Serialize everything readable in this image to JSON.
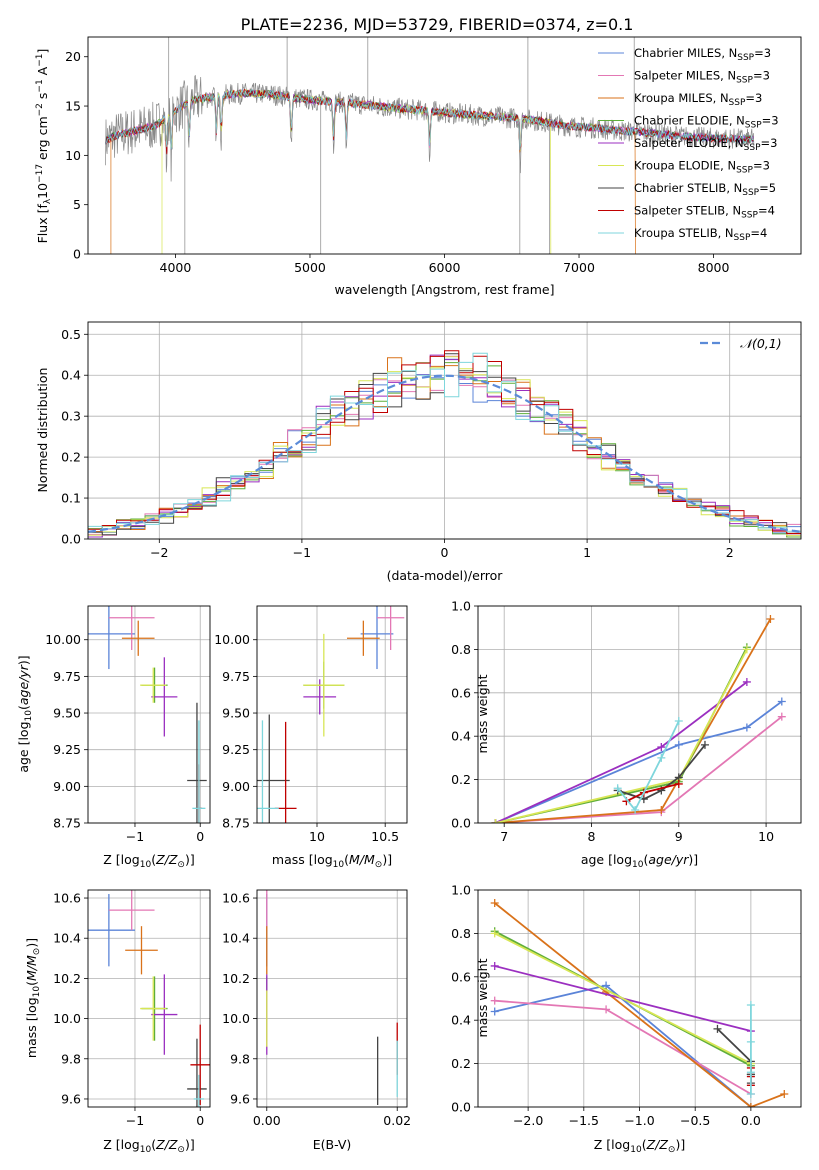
{
  "figure_title": "PLATE=2236, MJD=53729, FIBERID=0374, z=0.1",
  "colors": {
    "Chabrier MILES": "#5b84d8",
    "Salpeter MILES": "#e377b4",
    "Kroupa MILES": "#d9721a",
    "Chabrier ELODIE": "#5fae3a",
    "Salpeter ELODIE": "#9b2fc0",
    "Kroupa ELODIE": "#d8e655",
    "Chabrier STELIB": "#444444",
    "Salpeter STELIB": "#c00000",
    "Kroupa STELIB": "#7fd6dc",
    "normal_curve": "#5b8bd8",
    "grid": "#b0b0b0"
  },
  "chart_data": [
    {
      "id": "spectrum",
      "type": "line",
      "xlabel": "wavelength [Angstrom, rest frame]",
      "ylabel": "Flux [f$_\\lambda$10$^{-17}$ erg cm$^{-2}$ s$^{-1}$ A$^{-1}$]",
      "ylabel_parts": [
        "Flux [f",
        "λ",
        "10",
        "−17",
        " erg cm",
        "−2",
        " s",
        "−1",
        " A",
        "−1",
        "]"
      ],
      "xlim": [
        3350,
        8650
      ],
      "ylim": [
        0,
        22
      ],
      "xticks": [
        4000,
        5000,
        6000,
        7000,
        8000
      ],
      "yticks": [
        0,
        5,
        10,
        15,
        20
      ],
      "legend": [
        {
          "label": "Chabrier MILES, N",
          "sub": "SSP",
          "suffix": "=3"
        },
        {
          "label": "Salpeter MILES, N",
          "sub": "SSP",
          "suffix": "=3"
        },
        {
          "label": "Kroupa MILES, N",
          "sub": "SSP",
          "suffix": "=3"
        },
        {
          "label": "Chabrier ELODIE, N",
          "sub": "SSP",
          "suffix": "=3"
        },
        {
          "label": "Salpeter ELODIE, N",
          "sub": "SSP",
          "suffix": "=3"
        },
        {
          "label": "Kroupa ELODIE, N",
          "sub": "SSP",
          "suffix": "=3"
        },
        {
          "label": "Chabrier STELIB, N",
          "sub": "SSP",
          "suffix": "=5"
        },
        {
          "label": "Salpeter STELIB, N",
          "sub": "SSP",
          "suffix": "=4"
        },
        {
          "label": "Kroupa STELIB, N",
          "sub": "SSP",
          "suffix": "=4"
        }
      ],
      "legend_placement": "upper-right",
      "grid": false,
      "continuum": {
        "x": [
          3480,
          3550,
          3700,
          3850,
          3950,
          4100,
          4300,
          4500,
          4700,
          4900,
          5100,
          5300,
          5500,
          5700,
          5900,
          6100,
          6300,
          6500,
          6700,
          6900,
          7100,
          7300,
          7500,
          7700,
          7900,
          8100,
          8300
        ],
        "y": [
          11.5,
          12.0,
          12.5,
          13.0,
          14.0,
          15.5,
          16.0,
          16.3,
          16.2,
          15.8,
          15.5,
          15.3,
          15.0,
          14.7,
          14.5,
          14.2,
          14.0,
          13.8,
          13.5,
          13.0,
          12.8,
          12.5,
          12.3,
          12.0,
          11.8,
          11.7,
          11.6
        ]
      },
      "absorption_features": [
        3934,
        3969,
        4102,
        4304,
        4340,
        4861,
        5175,
        5270,
        5890,
        6563
      ],
      "spikes": [
        3950,
        4070,
        4830,
        5080,
        5430,
        6560,
        6620,
        6780,
        7410
      ]
    },
    {
      "id": "residuals",
      "type": "histogram",
      "xlabel": "(data-model)/error",
      "ylabel": "Normed distribution",
      "xlim": [
        -2.5,
        2.5
      ],
      "ylim": [
        0,
        0.53
      ],
      "xticks": [
        -2,
        -1,
        0,
        1,
        2
      ],
      "yticks": [
        0.0,
        0.1,
        0.2,
        0.3,
        0.4,
        0.5
      ],
      "grid": true,
      "bin_width": 0.1,
      "legend": [
        {
          "label": "𝒩(0,1)"
        }
      ],
      "legend_placement": "upper-right",
      "curve": "N(0,1)"
    },
    {
      "id": "age_vs_Z",
      "type": "scatter",
      "xlabel": "Z [log$_{10}$(Z/Z$_\\odot$)]",
      "ylabel": "age  [log$_{10}$(age/yr)]",
      "xlim": [
        -1.72,
        0.15
      ],
      "ylim": [
        8.75,
        10.23
      ],
      "xticks": [
        -1,
        0
      ],
      "yticks": [
        8.75,
        9.0,
        9.25,
        9.5,
        9.75,
        10.0
      ],
      "grid": true,
      "points": [
        {
          "series": "Chabrier MILES",
          "x": -1.4,
          "xerr": 0.4,
          "y": 10.04,
          "yerr": 0.24
        },
        {
          "series": "Salpeter MILES",
          "x": -1.05,
          "xerr": 0.35,
          "y": 10.15,
          "yerr": 0.22
        },
        {
          "series": "Kroupa MILES",
          "x": -0.95,
          "xerr": 0.25,
          "y": 10.01,
          "yerr": 0.12
        },
        {
          "series": "Chabrier ELODIE",
          "x": -0.7,
          "xerr": 0.2,
          "y": 9.69,
          "yerr": 0.12
        },
        {
          "series": "Salpeter ELODIE",
          "x": -0.55,
          "xerr": 0.2,
          "y": 9.61,
          "yerr": 0.27
        },
        {
          "series": "Kroupa ELODIE",
          "x": -0.72,
          "xerr": 0.2,
          "y": 9.69,
          "yerr": 0.12
        },
        {
          "series": "Chabrier STELIB",
          "x": -0.05,
          "xerr": 0.15,
          "y": 9.04,
          "yerr": 0.53
        },
        {
          "series": "Salpeter STELIB",
          "x": -0.02,
          "xerr": 0.05,
          "y": 8.85,
          "yerr": 0.3
        },
        {
          "series": "Kroupa STELIB",
          "x": -0.02,
          "xerr": 0.1,
          "y": 8.85,
          "yerr": 0.6
        }
      ]
    },
    {
      "id": "age_vs_mass",
      "type": "scatter",
      "xlabel": "mass [log$_{10}$(M/M$_\\odot$)]",
      "ylabel": "",
      "xlim": [
        9.56,
        10.66
      ],
      "ylim": [
        8.75,
        10.23
      ],
      "xticks": [
        10.0,
        10.5
      ],
      "yticks": [
        8.75,
        9.0,
        9.25,
        9.5,
        9.75,
        10.0
      ],
      "grid": true,
      "points": [
        {
          "series": "Chabrier MILES",
          "x": 10.44,
          "xerr": 0.12,
          "y": 10.04,
          "yerr": 0.24
        },
        {
          "series": "Salpeter MILES",
          "x": 10.54,
          "xerr": 0.1,
          "y": 10.15,
          "yerr": 0.22
        },
        {
          "series": "Kroupa MILES",
          "x": 10.34,
          "xerr": 0.12,
          "y": 10.01,
          "yerr": 0.12
        },
        {
          "series": "Chabrier ELODIE",
          "x": 10.05,
          "xerr": 0.15,
          "y": 9.69,
          "yerr": 0.16
        },
        {
          "series": "Salpeter ELODIE",
          "x": 10.02,
          "xerr": 0.12,
          "y": 9.61,
          "yerr": 0.12
        },
        {
          "series": "Kroupa ELODIE",
          "x": 10.05,
          "xerr": 0.15,
          "y": 9.69,
          "yerr": 0.35
        },
        {
          "series": "Chabrier STELIB",
          "x": 9.65,
          "xerr": 0.15,
          "y": 9.04,
          "yerr": 0.45
        },
        {
          "series": "Salpeter STELIB",
          "x": 9.77,
          "xerr": 0.08,
          "y": 8.85,
          "yerr": 0.59
        },
        {
          "series": "Kroupa STELIB",
          "x": 9.6,
          "xerr": 0.12,
          "y": 8.85,
          "yerr": 0.6
        }
      ]
    },
    {
      "id": "mass_weight_vs_age",
      "type": "line",
      "xlabel": "age  [log$_{10}$(age/yr)]",
      "ylabel": "mass weight",
      "xlim": [
        6.7,
        10.4
      ],
      "ylim": [
        0.0,
        1.0
      ],
      "xticks": [
        7,
        8,
        9,
        10
      ],
      "yticks": [
        0.0,
        0.2,
        0.4,
        0.6,
        0.8,
        1.0
      ],
      "grid": true,
      "series": [
        {
          "name": "Chabrier MILES",
          "x": [
            6.9,
            9.0,
            9.78,
            10.18
          ],
          "y": [
            0.0,
            0.36,
            0.44,
            0.56
          ]
        },
        {
          "name": "Salpeter MILES",
          "x": [
            6.9,
            8.8,
            10.18
          ],
          "y": [
            0.0,
            0.05,
            0.49
          ]
        },
        {
          "name": "Kroupa MILES",
          "x": [
            6.9,
            8.8,
            10.05
          ],
          "y": [
            0.0,
            0.06,
            0.94
          ]
        },
        {
          "name": "Chabrier ELODIE",
          "x": [
            6.9,
            9.0,
            9.78
          ],
          "y": [
            0.0,
            0.19,
            0.81
          ]
        },
        {
          "name": "Salpeter ELODIE",
          "x": [
            6.9,
            8.8,
            9.78
          ],
          "y": [
            0.0,
            0.35,
            0.65
          ]
        },
        {
          "name": "Kroupa ELODIE",
          "x": [
            6.9,
            9.0,
            9.78
          ],
          "y": [
            0.0,
            0.2,
            0.8
          ]
        },
        {
          "name": "Chabrier STELIB",
          "x": [
            8.3,
            8.6,
            8.8,
            9.0,
            9.3
          ],
          "y": [
            0.15,
            0.11,
            0.15,
            0.21,
            0.36
          ]
        },
        {
          "name": "Salpeter STELIB",
          "x": [
            8.4,
            8.6,
            9.0
          ],
          "y": [
            0.1,
            0.14,
            0.18
          ]
        },
        {
          "name": "Kroupa STELIB",
          "x": [
            8.3,
            8.5,
            8.8,
            9.0
          ],
          "y": [
            0.16,
            0.06,
            0.3,
            0.47
          ]
        }
      ]
    },
    {
      "id": "mass_vs_Z",
      "type": "scatter",
      "xlabel": "Z [log$_{10}$(Z/Z$_\\odot$)]",
      "ylabel": "mass [log$_{10}$(M/M$_\\odot$)]",
      "xlim": [
        -1.72,
        0.15
      ],
      "ylim": [
        9.56,
        10.64
      ],
      "xticks": [
        -1,
        0
      ],
      "yticks": [
        9.6,
        9.8,
        10.0,
        10.2,
        10.4,
        10.6
      ],
      "grid": true,
      "points": [
        {
          "series": "Chabrier MILES",
          "x": -1.4,
          "xerr": 0.4,
          "y": 10.44,
          "yerr": 0.18
        },
        {
          "series": "Salpeter MILES",
          "x": -1.05,
          "xerr": 0.35,
          "y": 10.54,
          "yerr": 0.1
        },
        {
          "series": "Kroupa MILES",
          "x": -0.9,
          "xerr": 0.25,
          "y": 10.34,
          "yerr": 0.12
        },
        {
          "series": "Chabrier ELODIE",
          "x": -0.7,
          "xerr": 0.2,
          "y": 10.05,
          "yerr": 0.16
        },
        {
          "series": "Salpeter ELODIE",
          "x": -0.55,
          "xerr": 0.2,
          "y": 10.02,
          "yerr": 0.2
        },
        {
          "series": "Kroupa ELODIE",
          "x": -0.72,
          "xerr": 0.2,
          "y": 10.05,
          "yerr": 0.16
        },
        {
          "series": "Chabrier STELIB",
          "x": -0.05,
          "xerr": 0.15,
          "y": 9.65,
          "yerr": 0.25
        },
        {
          "series": "Salpeter STELIB",
          "x": 0.0,
          "xerr": 0.15,
          "y": 9.77,
          "yerr": 0.2
        },
        {
          "series": "Kroupa STELIB",
          "x": -0.02,
          "xerr": 0.08,
          "y": 9.6,
          "yerr": 0.12
        }
      ]
    },
    {
      "id": "mass_vs_EBV",
      "type": "scatter",
      "xlabel": "E(B-V)",
      "ylabel": "",
      "xlim": [
        -0.0015,
        0.0215
      ],
      "ylim": [
        9.56,
        10.64
      ],
      "xticks": [
        0.0,
        0.02
      ],
      "yticks": [
        9.6,
        9.8,
        10.0,
        10.2,
        10.4,
        10.6
      ],
      "grid": true,
      "points": [
        {
          "series": "Chabrier MILES",
          "x": 0.0,
          "xerr": 0,
          "y": 10.44,
          "yerr": 0.18
        },
        {
          "series": "Salpeter MILES",
          "x": 0.0,
          "xerr": 0,
          "y": 10.54,
          "yerr": 0.1
        },
        {
          "series": "Kroupa MILES",
          "x": 0.0,
          "xerr": 0,
          "y": 10.34,
          "yerr": 0.12
        },
        {
          "series": "Chabrier ELODIE",
          "x": 0.0,
          "xerr": 0,
          "y": 10.05,
          "yerr": 0.16
        },
        {
          "series": "Salpeter ELODIE",
          "x": 0.0,
          "xerr": 0,
          "y": 10.02,
          "yerr": 0.2
        },
        {
          "series": "Kroupa ELODIE",
          "x": 0.0,
          "xerr": 0,
          "y": 10.0,
          "yerr": 0.14
        },
        {
          "series": "Chabrier STELIB",
          "x": 0.017,
          "xerr": 0,
          "y": 9.74,
          "yerr": 0.17
        },
        {
          "series": "Salpeter STELIB",
          "x": 0.02,
          "xerr": 0,
          "y": 9.85,
          "yerr": 0.13
        },
        {
          "series": "Kroupa STELIB",
          "x": 0.02,
          "xerr": 0,
          "y": 9.75,
          "yerr": 0.14
        }
      ]
    },
    {
      "id": "mass_weight_vs_Z",
      "type": "line",
      "xlabel": "Z [log$_{10}$(Z/Z$_\\odot$)]",
      "ylabel": "mass weight",
      "xlim": [
        -2.45,
        0.45
      ],
      "ylim": [
        0.0,
        1.0
      ],
      "xticks": [
        -2.0,
        -1.5,
        -1.0,
        -0.5,
        0.0
      ],
      "yticks": [
        0.0,
        0.2,
        0.4,
        0.6,
        0.8,
        1.0
      ],
      "grid": true,
      "series": [
        {
          "name": "Chabrier MILES",
          "x": [
            -2.3,
            -1.3,
            0.0
          ],
          "y": [
            0.44,
            0.56,
            0.0
          ]
        },
        {
          "name": "Salpeter MILES",
          "x": [
            -2.3,
            -1.3,
            0.0
          ],
          "y": [
            0.49,
            0.45,
            0.06
          ]
        },
        {
          "name": "Kroupa MILES",
          "x": [
            -2.3,
            -1.3,
            0.0,
            0.3
          ],
          "y": [
            0.94,
            0.53,
            0.0,
            0.06
          ]
        },
        {
          "name": "Chabrier ELODIE",
          "x": [
            -2.3,
            0.0
          ],
          "y": [
            0.81,
            0.19
          ]
        },
        {
          "name": "Salpeter ELODIE",
          "x": [
            -2.3,
            0.0
          ],
          "y": [
            0.65,
            0.35
          ]
        },
        {
          "name": "Kroupa ELODIE",
          "x": [
            -2.3,
            0.0
          ],
          "y": [
            0.8,
            0.2
          ]
        },
        {
          "name": "Chabrier STELIB",
          "x": [
            -0.3,
            0.0,
            0.0,
            0.0,
            0.0
          ],
          "y": [
            0.36,
            0.21,
            0.15,
            0.11,
            0.15
          ]
        },
        {
          "name": "Salpeter STELIB",
          "x": [
            0.0,
            0.0,
            0.0
          ],
          "y": [
            0.1,
            0.14,
            0.18
          ]
        },
        {
          "name": "Kroupa STELIB",
          "x": [
            0.0,
            0.0,
            0.0,
            0.0
          ],
          "y": [
            0.16,
            0.06,
            0.3,
            0.47
          ]
        }
      ]
    }
  ]
}
